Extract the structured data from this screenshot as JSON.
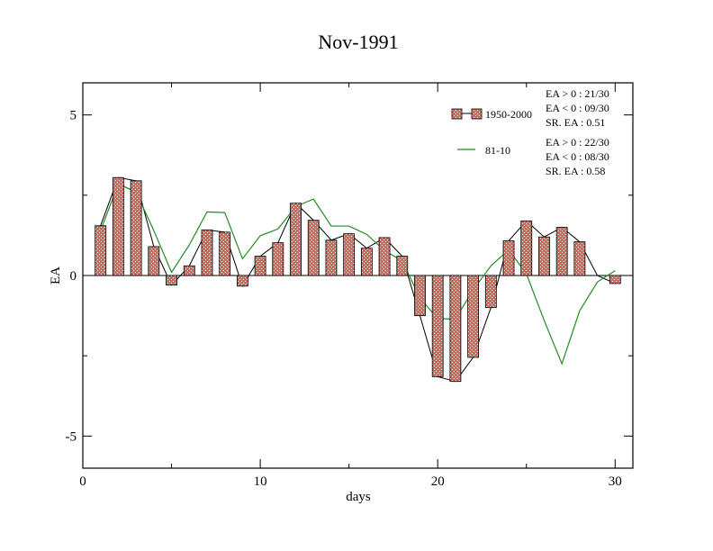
{
  "chart_data": {
    "type": "bar",
    "title": "Nov-1991",
    "xlabel": "days",
    "ylabel": "EA",
    "xlim": [
      0,
      31
    ],
    "ylim": [
      -6,
      6
    ],
    "x_ticks": [
      0,
      10,
      20,
      30
    ],
    "y_ticks": [
      -5,
      0,
      5
    ],
    "legend_position": "top-right",
    "colors": {
      "bar_fill": "#e06060",
      "bar_hatch": "#ffffff",
      "bar_edge": "#000000",
      "black_line": "#000000",
      "green_line": "#228b22"
    },
    "days": [
      1,
      2,
      3,
      4,
      5,
      6,
      7,
      8,
      9,
      10,
      11,
      12,
      13,
      14,
      15,
      16,
      17,
      18,
      19,
      20,
      21,
      22,
      23,
      24,
      25,
      26,
      27,
      28,
      29,
      30
    ],
    "series": [
      {
        "name": "1950-2000",
        "kind": "bar-with-line",
        "values": [
          1.55,
          3.05,
          2.95,
          0.9,
          -0.3,
          0.3,
          1.42,
          1.35,
          -0.33,
          0.6,
          1.02,
          2.25,
          1.72,
          1.1,
          1.3,
          0.85,
          1.18,
          0.6,
          -1.25,
          -3.15,
          -3.3,
          -2.55,
          -1.0,
          1.08,
          1.7,
          1.2,
          1.5,
          1.05,
          0.0,
          -0.25
        ]
      },
      {
        "name": "81-10",
        "kind": "line",
        "values": [
          1.4,
          2.85,
          2.6,
          1.4,
          0.1,
          0.95,
          1.98,
          1.96,
          0.52,
          1.24,
          1.45,
          2.15,
          2.38,
          1.54,
          1.54,
          1.28,
          0.78,
          0.45,
          -0.7,
          -1.35,
          -1.35,
          -0.45,
          0.3,
          0.8,
          0.05,
          -1.4,
          -2.75,
          -1.1,
          -0.2,
          0.15
        ]
      }
    ],
    "legend": [
      {
        "label": "1950-2000",
        "stats": [
          "EA > 0 : 21/30",
          "EA < 0 : 09/30",
          "SR. EA :  0.51"
        ]
      },
      {
        "label": "81-10",
        "stats": [
          "EA > 0 : 22/30",
          "EA < 0 : 08/30",
          "SR. EA :  0.58"
        ]
      }
    ]
  }
}
